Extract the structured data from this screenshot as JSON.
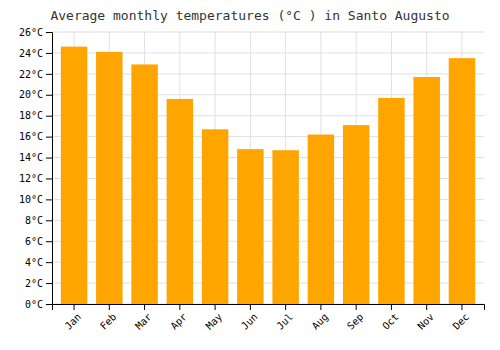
{
  "chart_data": {
    "type": "bar",
    "title": "Average monthly temperatures (°C ) in Santo Augusto",
    "categories": [
      "Jan",
      "Feb",
      "Mar",
      "Apr",
      "May",
      "Jun",
      "Jul",
      "Aug",
      "Sep",
      "Oct",
      "Nov",
      "Dec"
    ],
    "values": [
      24.6,
      24.1,
      22.9,
      19.6,
      16.7,
      14.8,
      14.7,
      16.2,
      17.1,
      19.7,
      21.7,
      23.5
    ],
    "color": "#FFA500",
    "ylim": [
      0,
      26
    ],
    "yticks": [
      {
        "value": 0,
        "label": "0°C"
      },
      {
        "value": 2,
        "label": "2°C"
      },
      {
        "value": 4,
        "label": "4°C"
      },
      {
        "value": 6,
        "label": "6°C"
      },
      {
        "value": 8,
        "label": "8°C"
      },
      {
        "value": 10,
        "label": "10°C"
      },
      {
        "value": 12,
        "label": "12°C"
      },
      {
        "value": 14,
        "label": "14°C"
      },
      {
        "value": 16,
        "label": "16°C"
      },
      {
        "value": 18,
        "label": "18°C"
      },
      {
        "value": 20,
        "label": "20°C"
      },
      {
        "value": 22,
        "label": "22°C"
      },
      {
        "value": 24,
        "label": "24°C"
      },
      {
        "value": 26,
        "label": "26°C"
      }
    ],
    "grid": true
  }
}
